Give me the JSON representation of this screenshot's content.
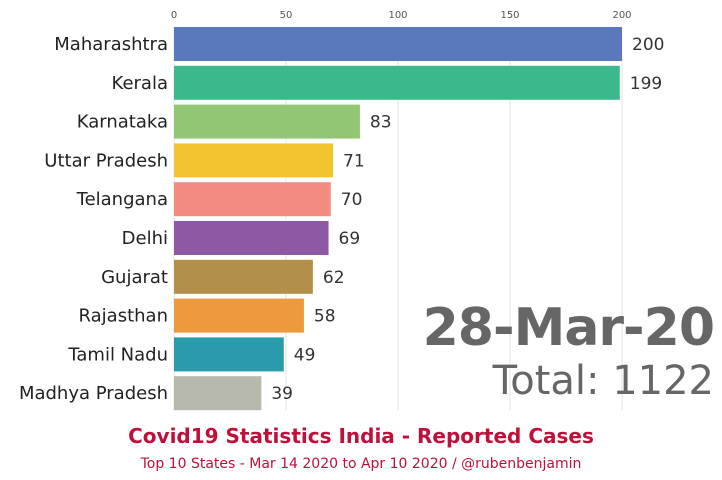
{
  "chart_data": {
    "type": "bar",
    "orientation": "horizontal",
    "title": "Covid19 Statistics India - Reported Cases",
    "subtitle": "Top 10 States - Mar 14 2020 to Apr 10 2020 / @rubenbenjamin",
    "categories": [
      "Maharashtra",
      "Kerala",
      "Karnataka",
      "Uttar Pradesh",
      "Telangana",
      "Delhi",
      "Gujarat",
      "Rajasthan",
      "Tamil Nadu",
      "Madhya Pradesh"
    ],
    "values": [
      200,
      199,
      83,
      71,
      70,
      69,
      62,
      58,
      49,
      39
    ],
    "colors": [
      "#5a79bd",
      "#3cb98b",
      "#93c672",
      "#f4c430",
      "#f28c82",
      "#8e59a4",
      "#b38f4c",
      "#ec9a3c",
      "#2a9bab",
      "#b6b9ac"
    ],
    "xticks": [
      0,
      50,
      100,
      150,
      200
    ],
    "xlim": [
      0,
      200
    ],
    "xaxis_position": "top",
    "grid": true,
    "date": "28-Mar-20",
    "total_label": "Total: 1122"
  }
}
